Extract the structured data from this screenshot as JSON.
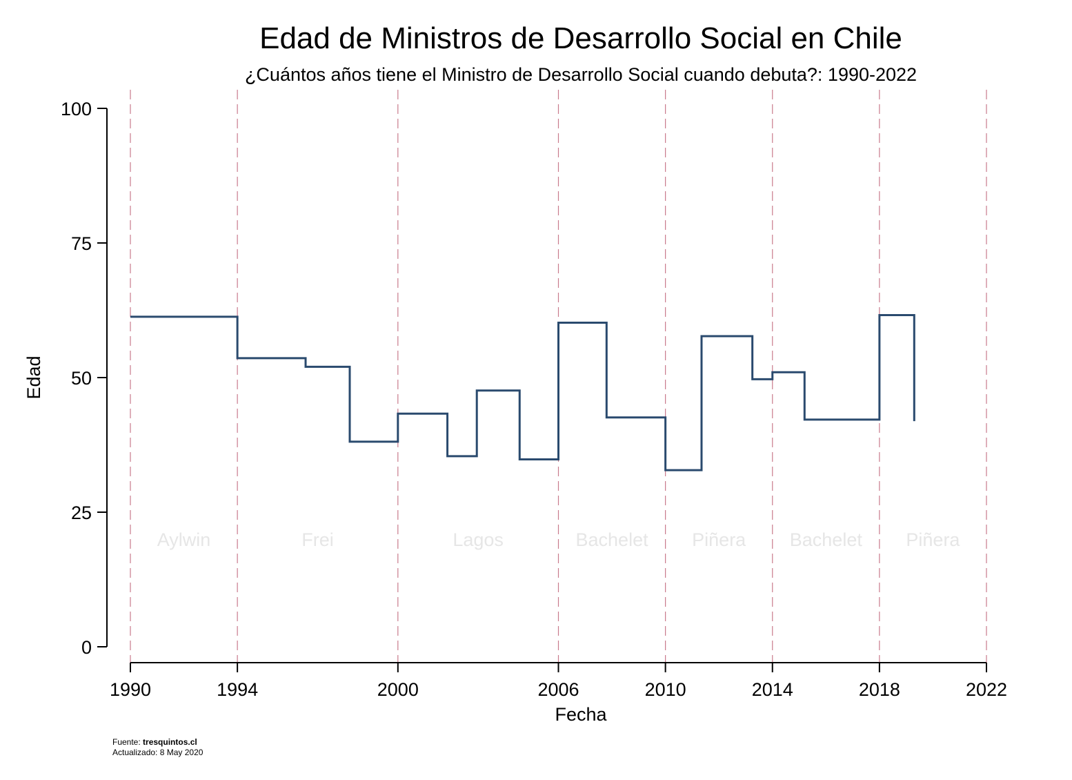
{
  "chart_data": {
    "type": "line",
    "step": true,
    "title": "Edad de Ministros de Desarrollo Social en Chile",
    "subtitle": "¿Cuántos años tiene el Ministro de Desarrollo Social cuando debuta?: 1990-2022",
    "xlabel": "Fecha",
    "ylabel": "Edad",
    "xlim": [
      1990,
      2022
    ],
    "ylim": [
      0,
      100
    ],
    "xticks": [
      "1990",
      "1994",
      "2000",
      "2006",
      "2010",
      "2014",
      "2018",
      "2022"
    ],
    "yticks": [
      "0",
      "25",
      "50",
      "75",
      "100"
    ],
    "series": [
      {
        "x": [
          1990.0,
          1994.0,
          1996.55,
          1998.2,
          2000.0,
          2001.85,
          2002.95,
          2004.55,
          2006.0,
          2007.8,
          2010.0,
          2011.35,
          2013.25,
          2014.0,
          2015.2,
          2018.0,
          2019.3
        ],
        "y": [
          61.3,
          53.6,
          52.0,
          38.1,
          43.3,
          35.4,
          47.6,
          34.8,
          60.2,
          42.6,
          32.8,
          57.7,
          49.7,
          51.0,
          42.2,
          61.6,
          41.9
        ],
        "color": "#2a4a6e"
      }
    ],
    "periods": [
      {
        "label": "Aylwin",
        "start": 1990,
        "end": 1994
      },
      {
        "label": "Frei",
        "start": 1994,
        "end": 2000
      },
      {
        "label": "Lagos",
        "start": 2000,
        "end": 2006
      },
      {
        "label": "Bachelet",
        "start": 2006,
        "end": 2010
      },
      {
        "label": "Piñera",
        "start": 2010,
        "end": 2014
      },
      {
        "label": "Bachelet",
        "start": 2014,
        "end": 2018
      },
      {
        "label": "Piñera",
        "start": 2018,
        "end": 2022
      }
    ],
    "period_line_color": "#c97a8c",
    "period_label_y": 20,
    "grid": false
  },
  "footer": {
    "source_prefix": "Fuente: ",
    "source_name": "tresquintos.cl",
    "updated": "Actualizado:  8 May 2020"
  }
}
